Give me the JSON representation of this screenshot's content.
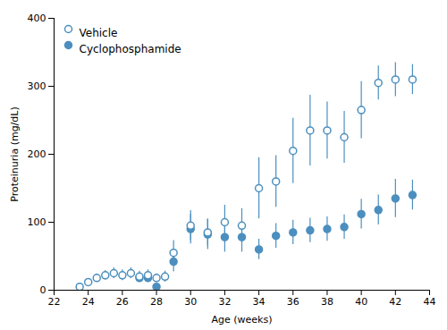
{
  "chart_data": {
    "type": "scatter",
    "xlabel": "Age (weeks)",
    "ylabel": "Proteinuria (mg/dL)",
    "xlim": [
      22,
      44
    ],
    "ylim": [
      0,
      400
    ],
    "xticks": [
      22,
      24,
      26,
      28,
      30,
      32,
      34,
      36,
      38,
      40,
      42,
      44
    ],
    "yticks": [
      0,
      100,
      200,
      300,
      400
    ],
    "grid": false,
    "legend": "upper left",
    "series": [
      {
        "name": "Vehicle",
        "color": "#4C8FBE",
        "marker": "circle-open",
        "x": [
          23.5,
          24,
          24.5,
          25,
          25.5,
          26,
          26.5,
          27,
          27.5,
          28,
          28.5,
          29,
          30,
          31,
          32,
          33,
          34,
          35,
          36,
          37,
          38,
          39,
          40,
          41,
          42,
          43
        ],
        "values": [
          5,
          12,
          18,
          22,
          25,
          22,
          25,
          20,
          22,
          18,
          20,
          55,
          95,
          85,
          100,
          95,
          150,
          160,
          205,
          235,
          235,
          225,
          265,
          305,
          310,
          310
        ],
        "errors": [
          3,
          5,
          6,
          7,
          8,
          8,
          8,
          8,
          8,
          6,
          8,
          18,
          22,
          20,
          25,
          25,
          45,
          38,
          48,
          52,
          42,
          38,
          42,
          25,
          25,
          22
        ]
      },
      {
        "name": "Cyclophosphamide",
        "color": "#4C8FBE",
        "marker": "circle",
        "x": [
          27,
          27.5,
          28,
          29,
          30,
          31,
          32,
          33,
          34,
          35,
          36,
          37,
          38,
          39,
          40,
          41,
          42,
          43
        ],
        "values": [
          18,
          18,
          5,
          42,
          90,
          82,
          78,
          78,
          60,
          80,
          85,
          88,
          90,
          93,
          112,
          118,
          135,
          140
        ],
        "errors": [
          5,
          5,
          5,
          15,
          22,
          22,
          22,
          22,
          15,
          18,
          18,
          18,
          18,
          18,
          22,
          22,
          28,
          22
        ]
      }
    ]
  }
}
